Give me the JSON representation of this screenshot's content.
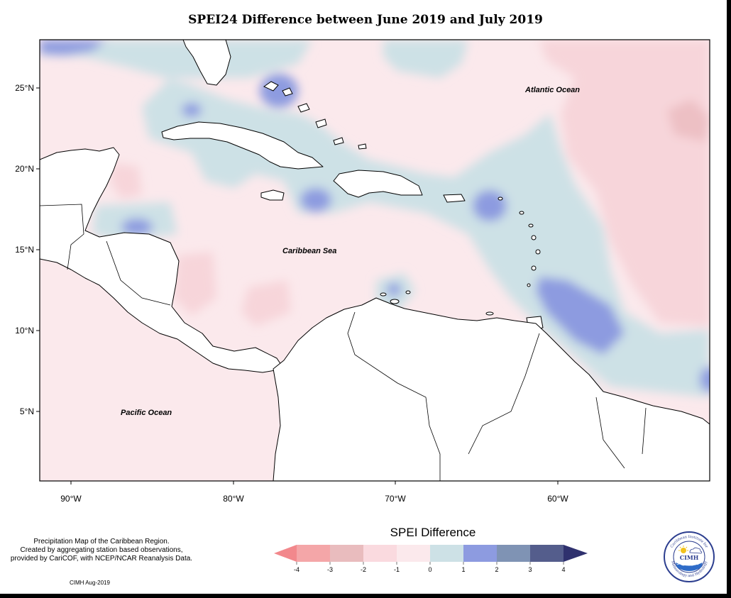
{
  "title": "SPEI24 Difference between June 2019 and July 2019",
  "axes": {
    "lat_labels": [
      "25°N",
      "20°N",
      "15°N",
      "10°N",
      "5°N"
    ],
    "lon_labels": [
      "90°W",
      "80°W",
      "70°W",
      "60°W"
    ]
  },
  "map_labels": {
    "atlantic": "Atlantic Ocean",
    "caribbean": "Caribbean Sea",
    "pacific": "Pacific Ocean"
  },
  "info_lines": [
    "Precipitation Map of the Caribbean Region.",
    "Created by aggregating station based observations,",
    "provided by CariCOF, with NCEP/NCAR Reanalysis Data."
  ],
  "credit": "CIMH Aug-2019",
  "legend": {
    "title": "SPEI Difference",
    "ticks": [
      "-4",
      "-3",
      "-2",
      "-1",
      "0",
      "1",
      "2",
      "3",
      "4"
    ],
    "colors": [
      "#f2888c",
      "#f4a6a8",
      "#e9bcbe",
      "#fadadf",
      "#fbe9ec",
      "#cde1e6",
      "#8d9be0",
      "#7f93b4",
      "#545d8c",
      "#2f316e"
    ]
  },
  "logo": {
    "arc_top": "Caribbean Institute for",
    "arc_bottom": "Meteorology and Hydrology",
    "abbr": "CIMH"
  }
}
